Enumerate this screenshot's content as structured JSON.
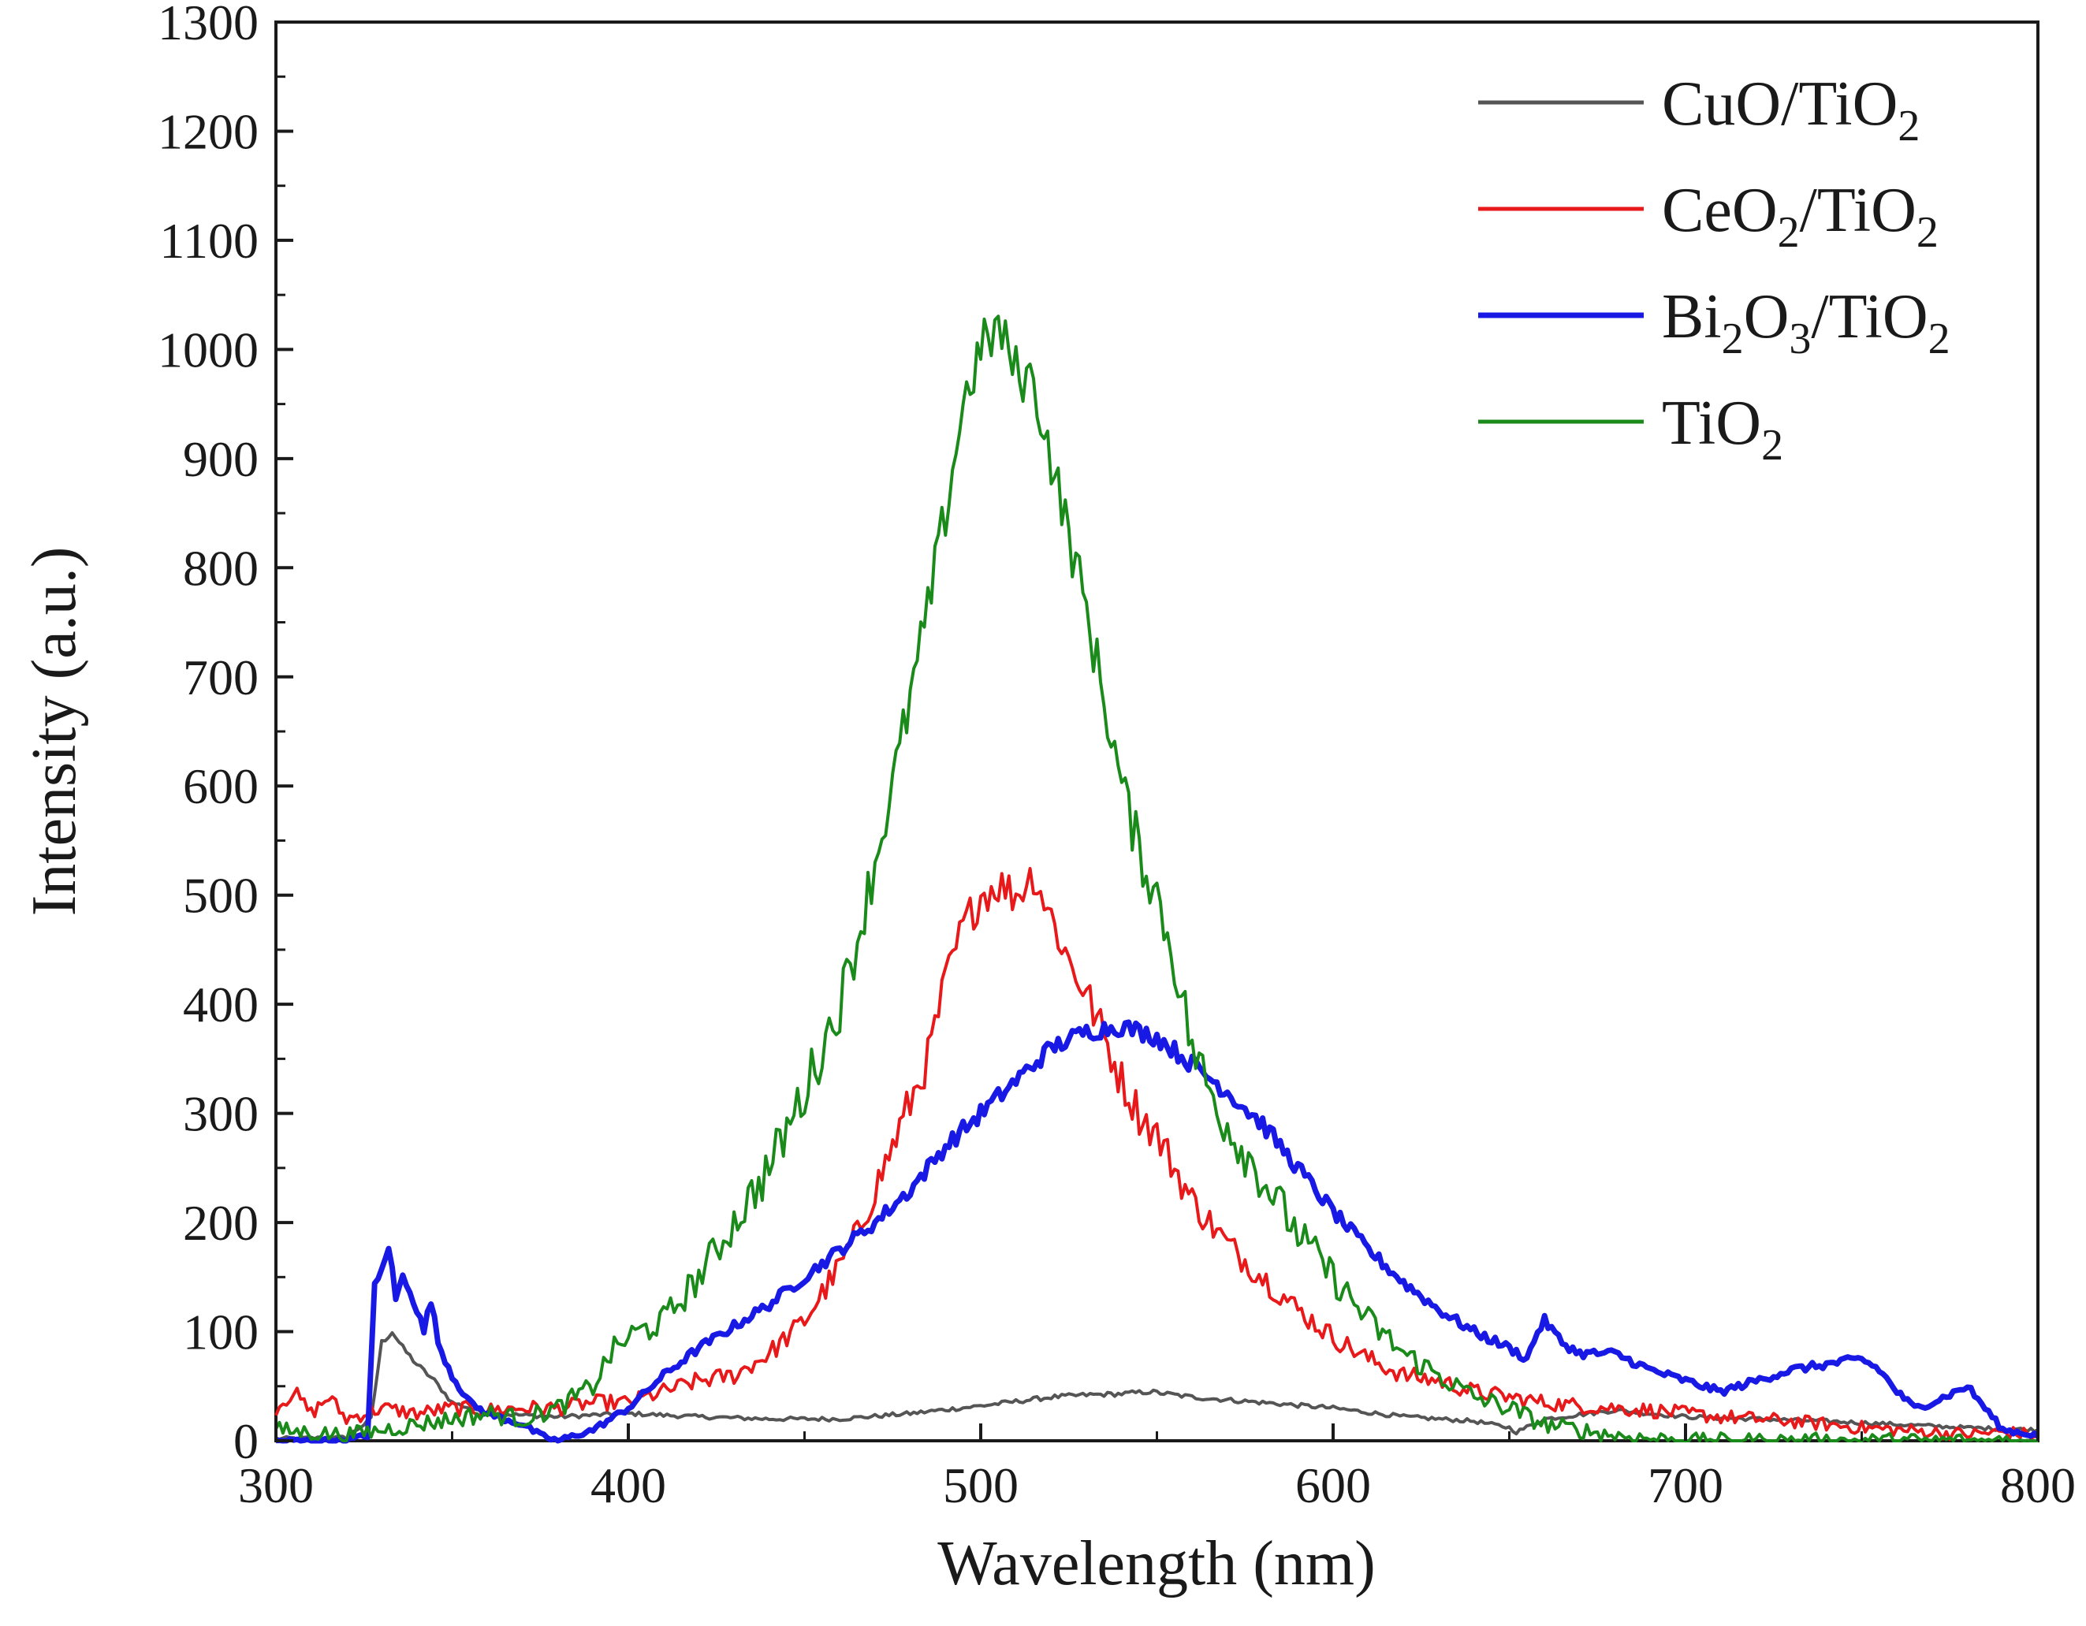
{
  "chart_data": {
    "type": "line",
    "title": "",
    "xlabel": "Wavelength (nm)",
    "ylabel": "Intensity (a.u.)",
    "xlim": [
      300,
      800
    ],
    "ylim": [
      0,
      1300
    ],
    "xticks": [
      300,
      400,
      500,
      600,
      700,
      800
    ],
    "yticks": [
      0,
      100,
      200,
      300,
      400,
      500,
      600,
      700,
      800,
      900,
      1000,
      1100,
      1200,
      1300
    ],
    "grid": false,
    "legend_position": "top-right",
    "series": [
      {
        "name": "CuO/TiO2",
        "label_main": "CuO/TiO",
        "label_sub": "2",
        "color": "#555555",
        "x": [
          300,
          320,
          327,
          330,
          333,
          336,
          340,
          345,
          350,
          360,
          380,
          400,
          420,
          440,
          460,
          480,
          500,
          520,
          530,
          540,
          548,
          560,
          580,
          600,
          620,
          640,
          650,
          652,
          660,
          680,
          700,
          720,
          740,
          760,
          780,
          800
        ],
        "y": [
          2,
          3,
          20,
          90,
          100,
          85,
          70,
          55,
          35,
          25,
          22,
          25,
          22,
          20,
          20,
          25,
          32,
          40,
          42,
          43,
          45,
          40,
          35,
          30,
          22,
          18,
          12,
          8,
          20,
          28,
          22,
          20,
          18,
          15,
          12,
          10
        ]
      },
      {
        "name": "CeO2/TiO2",
        "label_main": "CeO",
        "label_sub": "2",
        "label_tail": "/TiO",
        "label_sub2": "2",
        "color": "#e8191a",
        "x": [
          300,
          305,
          310,
          315,
          320,
          330,
          340,
          350,
          360,
          370,
          380,
          390,
          400,
          410,
          420,
          430,
          440,
          450,
          460,
          465,
          470,
          475,
          480,
          485,
          490,
          495,
          500,
          505,
          510,
          515,
          520,
          525,
          530,
          535,
          540,
          545,
          550,
          555,
          560,
          565,
          570,
          580,
          590,
          600,
          610,
          620,
          630,
          640,
          650,
          660,
          670,
          680,
          690,
          700,
          710,
          720,
          730,
          740,
          750,
          760,
          770,
          780,
          790,
          800
        ],
        "y": [
          30,
          45,
          25,
          40,
          20,
          30,
          25,
          30,
          28,
          30,
          30,
          35,
          35,
          45,
          55,
          60,
          80,
          110,
          160,
          190,
          230,
          270,
          310,
          350,
          420,
          470,
          500,
          510,
          500,
          520,
          480,
          440,
          410,
          370,
          330,
          300,
          280,
          250,
          220,
          200,
          180,
          150,
          120,
          95,
          75,
          60,
          55,
          45,
          40,
          35,
          32,
          30,
          28,
          25,
          22,
          20,
          18,
          15,
          12,
          10,
          8,
          6,
          8,
          5
        ]
      },
      {
        "name": "Bi2O3/TiO2",
        "label_main": "Bi",
        "label_sub": "2",
        "label_mid": "O",
        "label_sub_mid": "3",
        "label_tail": "/TiO",
        "label_sub2": "2",
        "color": "#1919e6",
        "x": [
          300,
          320,
          326,
          328,
          330,
          332,
          334,
          336,
          338,
          340,
          342,
          344,
          346,
          350,
          355,
          360,
          365,
          370,
          375,
          380,
          390,
          400,
          410,
          420,
          430,
          440,
          450,
          460,
          470,
          480,
          490,
          500,
          510,
          520,
          530,
          540,
          550,
          560,
          570,
          580,
          590,
          600,
          610,
          620,
          630,
          640,
          650,
          655,
          658,
          660,
          665,
          670,
          680,
          690,
          700,
          710,
          720,
          730,
          740,
          750,
          755,
          760,
          765,
          770,
          780,
          785,
          790,
          800
        ],
        "y": [
          0,
          0,
          5,
          140,
          155,
          180,
          130,
          150,
          140,
          120,
          100,
          130,
          90,
          60,
          35,
          25,
          20,
          15,
          5,
          0,
          10,
          30,
          60,
          85,
          105,
          125,
          150,
          175,
          200,
          230,
          270,
          300,
          330,
          360,
          375,
          380,
          370,
          345,
          320,
          290,
          250,
          210,
          175,
          145,
          120,
          100,
          85,
          75,
          100,
          110,
          90,
          80,
          80,
          65,
          55,
          45,
          55,
          65,
          70,
          75,
          65,
          45,
          30,
          35,
          50,
          30,
          10,
          5
        ]
      },
      {
        "name": "TiO2",
        "label_main": "TiO",
        "label_sub": "2",
        "color": "#1a8a1a",
        "x": [
          300,
          320,
          340,
          360,
          370,
          380,
          390,
          395,
          400,
          410,
          420,
          430,
          440,
          450,
          460,
          465,
          470,
          475,
          480,
          485,
          490,
          495,
          500,
          505,
          510,
          515,
          520,
          525,
          530,
          535,
          540,
          545,
          550,
          555,
          560,
          565,
          570,
          580,
          590,
          600,
          610,
          620,
          630,
          640,
          650,
          660,
          670,
          680,
          690,
          700,
          720,
          740,
          760,
          780,
          800
        ],
        "y": [
          10,
          5,
          15,
          25,
          20,
          30,
          50,
          80,
          95,
          110,
          150,
          200,
          250,
          320,
          400,
          460,
          530,
          600,
          680,
          760,
          850,
          950,
          1000,
          1020,
          980,
          970,
          900,
          830,
          760,
          680,
          600,
          540,
          500,
          440,
          360,
          320,
          290,
          240,
          190,
          150,
          110,
          80,
          60,
          40,
          30,
          15,
          10,
          5,
          2,
          0,
          0,
          0,
          0,
          0,
          0
        ]
      }
    ]
  }
}
